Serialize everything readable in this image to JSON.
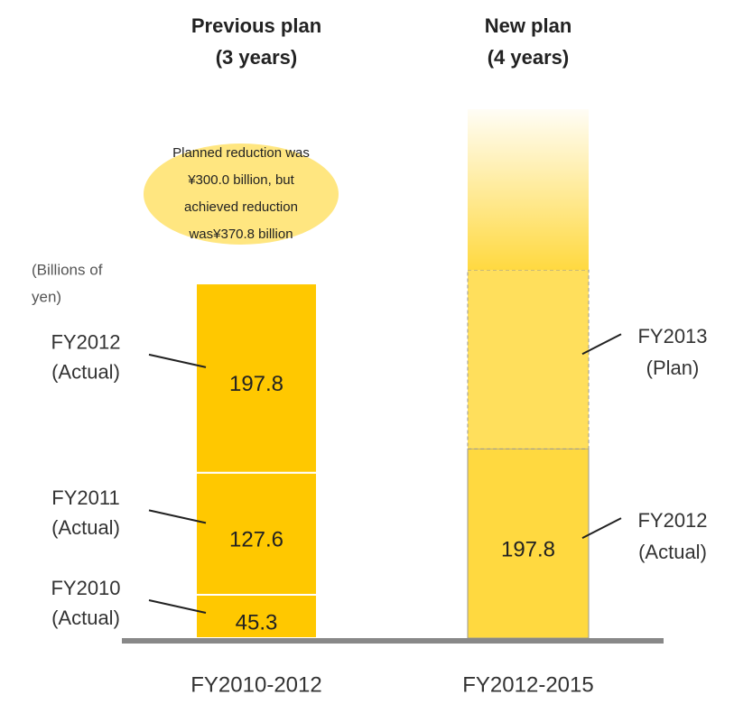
{
  "chart_data": {
    "type": "stacked_bar",
    "headers": [
      [
        "Previous plan",
        "(3 years)"
      ],
      [
        "New plan",
        "(4 years)"
      ]
    ],
    "categories": [
      "FY2010-2012",
      "FY2012-2015"
    ],
    "unit_label": [
      "(Billions of",
      "yen)"
    ],
    "callout": [
      "Planned reduction was",
      "¥300.0 billion, but",
      "achieved reduction",
      "was¥370.8 billion"
    ],
    "ylim": [
      0,
      600
    ],
    "bars": [
      {
        "segments": [
          {
            "label": [
              "FY2010",
              "(Actual)"
            ],
            "value": 45.3,
            "color": "#ffc800",
            "style": "solid",
            "show_value": true
          },
          {
            "label": [
              "FY2011",
              "(Actual)"
            ],
            "value": 127.6,
            "color": "#ffc800",
            "style": "solid",
            "show_value": true
          },
          {
            "label": [
              "FY2012",
              "(Actual)"
            ],
            "value": 197.8,
            "color": "#ffc800",
            "style": "solid",
            "show_value": true
          }
        ]
      },
      {
        "segments": [
          {
            "label": [
              "FY2012",
              "(Actual)"
            ],
            "value": 197.8,
            "color": "#ffd940",
            "style": "outlined",
            "show_value": true
          },
          {
            "label": [
              "FY2013",
              "(Plan)"
            ],
            "value": 187,
            "color": "#ffd940",
            "style": "dashed",
            "show_value": false
          },
          {
            "value": 168,
            "color": "#ffd940",
            "style": "fade",
            "show_value": false
          }
        ]
      }
    ]
  }
}
